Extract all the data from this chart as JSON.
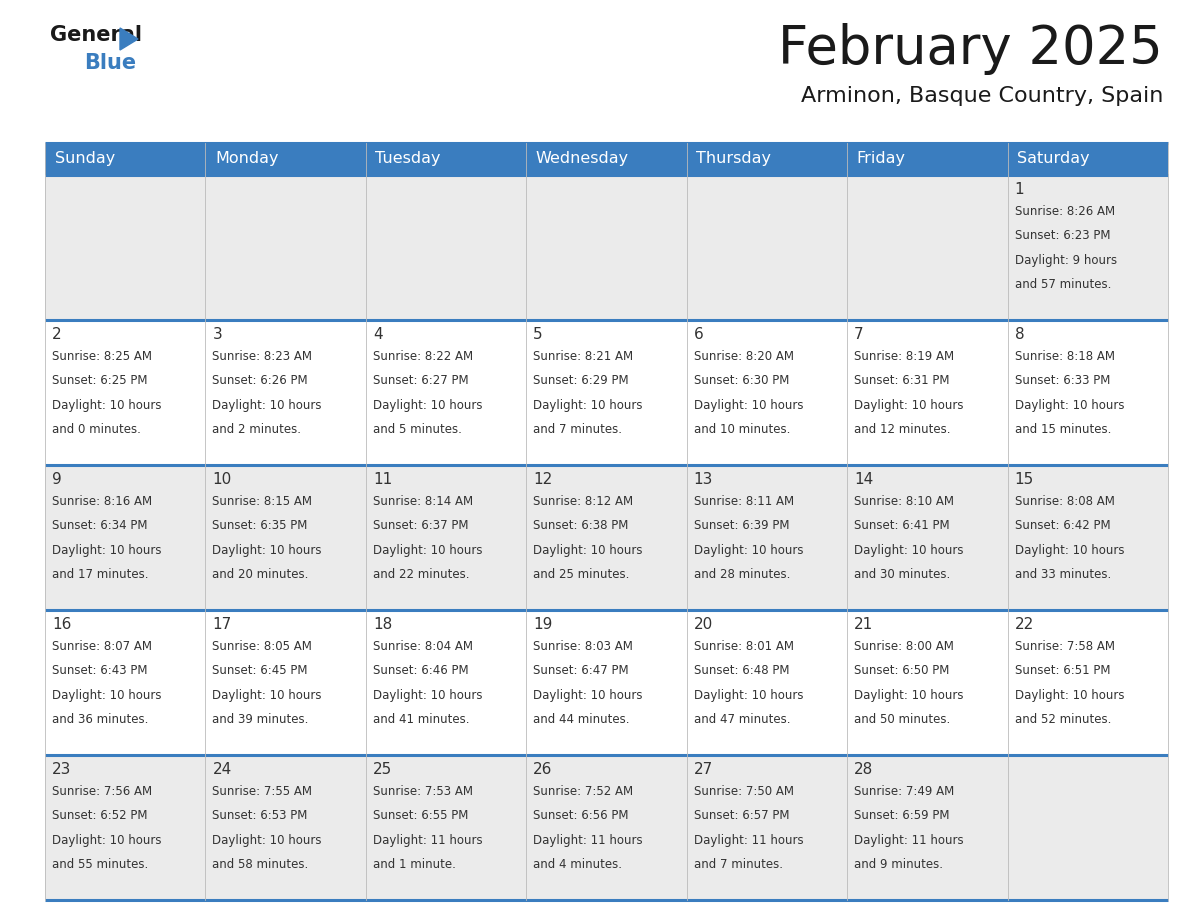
{
  "title": "February 2025",
  "subtitle": "Arminon, Basque Country, Spain",
  "header_color": "#3a7dbf",
  "header_text_color": "#ffffff",
  "border_color": "#3a7dbf",
  "cell_bg_light": "#ebebeb",
  "cell_bg_white": "#ffffff",
  "day_headers": [
    "Sunday",
    "Monday",
    "Tuesday",
    "Wednesday",
    "Thursday",
    "Friday",
    "Saturday"
  ],
  "days": [
    {
      "day": 1,
      "col": 6,
      "row": 0,
      "sunrise": "8:26 AM",
      "sunset": "6:23 PM",
      "daylight_h": "9 hours",
      "daylight_m": "and 57 minutes."
    },
    {
      "day": 2,
      "col": 0,
      "row": 1,
      "sunrise": "8:25 AM",
      "sunset": "6:25 PM",
      "daylight_h": "10 hours",
      "daylight_m": "and 0 minutes."
    },
    {
      "day": 3,
      "col": 1,
      "row": 1,
      "sunrise": "8:23 AM",
      "sunset": "6:26 PM",
      "daylight_h": "10 hours",
      "daylight_m": "and 2 minutes."
    },
    {
      "day": 4,
      "col": 2,
      "row": 1,
      "sunrise": "8:22 AM",
      "sunset": "6:27 PM",
      "daylight_h": "10 hours",
      "daylight_m": "and 5 minutes."
    },
    {
      "day": 5,
      "col": 3,
      "row": 1,
      "sunrise": "8:21 AM",
      "sunset": "6:29 PM",
      "daylight_h": "10 hours",
      "daylight_m": "and 7 minutes."
    },
    {
      "day": 6,
      "col": 4,
      "row": 1,
      "sunrise": "8:20 AM",
      "sunset": "6:30 PM",
      "daylight_h": "10 hours",
      "daylight_m": "and 10 minutes."
    },
    {
      "day": 7,
      "col": 5,
      "row": 1,
      "sunrise": "8:19 AM",
      "sunset": "6:31 PM",
      "daylight_h": "10 hours",
      "daylight_m": "and 12 minutes."
    },
    {
      "day": 8,
      "col": 6,
      "row": 1,
      "sunrise": "8:18 AM",
      "sunset": "6:33 PM",
      "daylight_h": "10 hours",
      "daylight_m": "and 15 minutes."
    },
    {
      "day": 9,
      "col": 0,
      "row": 2,
      "sunrise": "8:16 AM",
      "sunset": "6:34 PM",
      "daylight_h": "10 hours",
      "daylight_m": "and 17 minutes."
    },
    {
      "day": 10,
      "col": 1,
      "row": 2,
      "sunrise": "8:15 AM",
      "sunset": "6:35 PM",
      "daylight_h": "10 hours",
      "daylight_m": "and 20 minutes."
    },
    {
      "day": 11,
      "col": 2,
      "row": 2,
      "sunrise": "8:14 AM",
      "sunset": "6:37 PM",
      "daylight_h": "10 hours",
      "daylight_m": "and 22 minutes."
    },
    {
      "day": 12,
      "col": 3,
      "row": 2,
      "sunrise": "8:12 AM",
      "sunset": "6:38 PM",
      "daylight_h": "10 hours",
      "daylight_m": "and 25 minutes."
    },
    {
      "day": 13,
      "col": 4,
      "row": 2,
      "sunrise": "8:11 AM",
      "sunset": "6:39 PM",
      "daylight_h": "10 hours",
      "daylight_m": "and 28 minutes."
    },
    {
      "day": 14,
      "col": 5,
      "row": 2,
      "sunrise": "8:10 AM",
      "sunset": "6:41 PM",
      "daylight_h": "10 hours",
      "daylight_m": "and 30 minutes."
    },
    {
      "day": 15,
      "col": 6,
      "row": 2,
      "sunrise": "8:08 AM",
      "sunset": "6:42 PM",
      "daylight_h": "10 hours",
      "daylight_m": "and 33 minutes."
    },
    {
      "day": 16,
      "col": 0,
      "row": 3,
      "sunrise": "8:07 AM",
      "sunset": "6:43 PM",
      "daylight_h": "10 hours",
      "daylight_m": "and 36 minutes."
    },
    {
      "day": 17,
      "col": 1,
      "row": 3,
      "sunrise": "8:05 AM",
      "sunset": "6:45 PM",
      "daylight_h": "10 hours",
      "daylight_m": "and 39 minutes."
    },
    {
      "day": 18,
      "col": 2,
      "row": 3,
      "sunrise": "8:04 AM",
      "sunset": "6:46 PM",
      "daylight_h": "10 hours",
      "daylight_m": "and 41 minutes."
    },
    {
      "day": 19,
      "col": 3,
      "row": 3,
      "sunrise": "8:03 AM",
      "sunset": "6:47 PM",
      "daylight_h": "10 hours",
      "daylight_m": "and 44 minutes."
    },
    {
      "day": 20,
      "col": 4,
      "row": 3,
      "sunrise": "8:01 AM",
      "sunset": "6:48 PM",
      "daylight_h": "10 hours",
      "daylight_m": "and 47 minutes."
    },
    {
      "day": 21,
      "col": 5,
      "row": 3,
      "sunrise": "8:00 AM",
      "sunset": "6:50 PM",
      "daylight_h": "10 hours",
      "daylight_m": "and 50 minutes."
    },
    {
      "day": 22,
      "col": 6,
      "row": 3,
      "sunrise": "7:58 AM",
      "sunset": "6:51 PM",
      "daylight_h": "10 hours",
      "daylight_m": "and 52 minutes."
    },
    {
      "day": 23,
      "col": 0,
      "row": 4,
      "sunrise": "7:56 AM",
      "sunset": "6:52 PM",
      "daylight_h": "10 hours",
      "daylight_m": "and 55 minutes."
    },
    {
      "day": 24,
      "col": 1,
      "row": 4,
      "sunrise": "7:55 AM",
      "sunset": "6:53 PM",
      "daylight_h": "10 hours",
      "daylight_m": "and 58 minutes."
    },
    {
      "day": 25,
      "col": 2,
      "row": 4,
      "sunrise": "7:53 AM",
      "sunset": "6:55 PM",
      "daylight_h": "11 hours",
      "daylight_m": "and 1 minute."
    },
    {
      "day": 26,
      "col": 3,
      "row": 4,
      "sunrise": "7:52 AM",
      "sunset": "6:56 PM",
      "daylight_h": "11 hours",
      "daylight_m": "and 4 minutes."
    },
    {
      "day": 27,
      "col": 4,
      "row": 4,
      "sunrise": "7:50 AM",
      "sunset": "6:57 PM",
      "daylight_h": "11 hours",
      "daylight_m": "and 7 minutes."
    },
    {
      "day": 28,
      "col": 5,
      "row": 4,
      "sunrise": "7:49 AM",
      "sunset": "6:59 PM",
      "daylight_h": "11 hours",
      "daylight_m": "and 9 minutes."
    }
  ]
}
